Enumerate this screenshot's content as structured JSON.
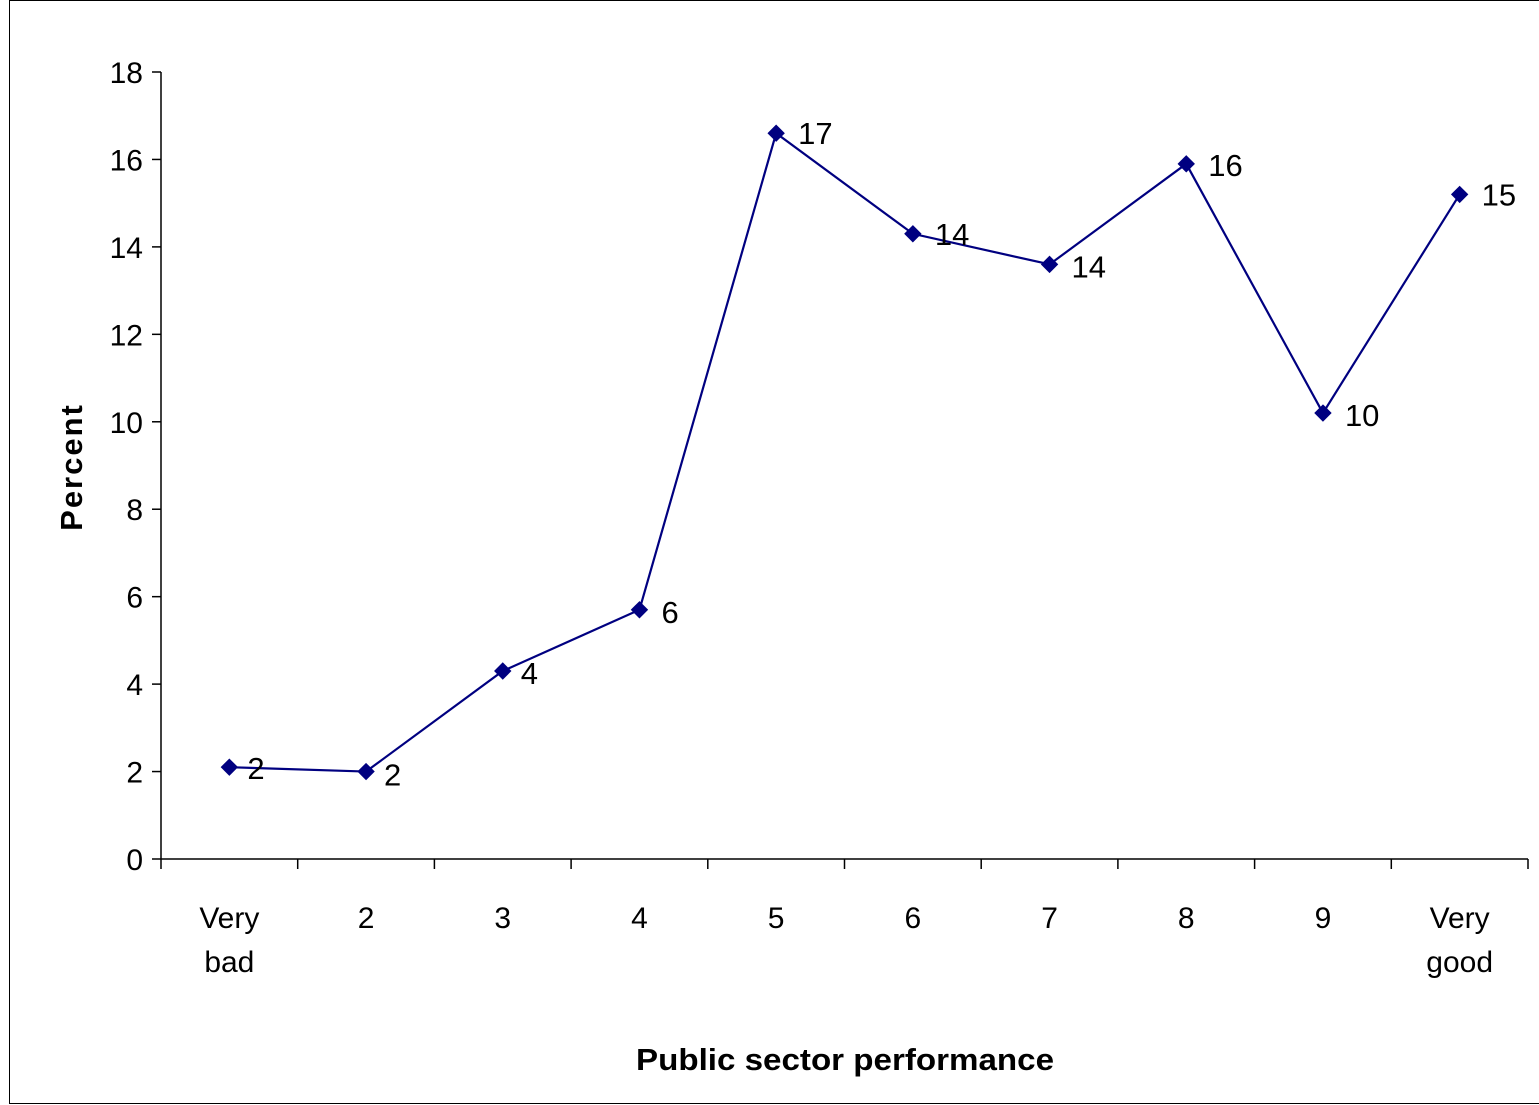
{
  "chart_data": {
    "type": "line",
    "title": "",
    "xlabel": "Public sector performance",
    "ylabel": "Percent",
    "categories": [
      [
        "Very",
        "bad"
      ],
      [
        "2"
      ],
      [
        "3"
      ],
      [
        "4"
      ],
      [
        "5"
      ],
      [
        "6"
      ],
      [
        "7"
      ],
      [
        "8"
      ],
      [
        "9"
      ],
      [
        "Very",
        "good"
      ]
    ],
    "series": [
      {
        "values": [
          2.1,
          2.0,
          4.3,
          5.7,
          16.6,
          14.3,
          13.6,
          15.9,
          10.2,
          15.2
        ],
        "data_labels": [
          "2",
          "2",
          "4",
          "6",
          "17",
          "14",
          "14",
          "16",
          "10",
          "15"
        ],
        "color": "#000080",
        "marker": "diamond"
      }
    ],
    "ylim": [
      0,
      18
    ],
    "yticks": [
      0,
      2,
      4,
      6,
      8,
      10,
      12,
      14,
      16,
      18
    ],
    "grid": false,
    "legend": "none"
  }
}
